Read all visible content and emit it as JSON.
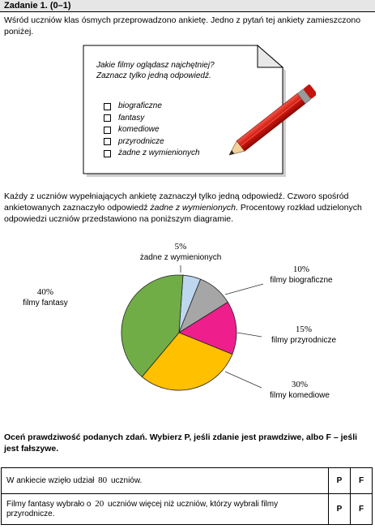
{
  "task": {
    "title": "Zadanie 1. (0–1)"
  },
  "intro": "Wśród uczniów klas ósmych przeprowadzono ankietę. Jedno z pytań tej ankiety zamieszczono poniżej.",
  "survey": {
    "question_line1": "Jakie filmy oglądasz najchętniej?",
    "question_line2": "Zaznacz tylko jedną odpowiedź.",
    "options": [
      "biograficzne",
      "fantasy",
      "komediowe",
      "przyrodnicze",
      "żadne z wymienionych"
    ],
    "icon": "pencil-icon"
  },
  "paragraph": {
    "part1": "Każdy z uczniów wypełniających ankietę zaznaczył tylko jedną odpowiedź. Czworo spośród ankietowanych zaznaczyło odpowiedź ",
    "emphasis": "żadne z wymienionych",
    "part2": ". Procentowy rozkład udzielonych odpowiedzi uczniów przedstawiono na poniższym diagramie."
  },
  "chart_data": {
    "type": "pie",
    "title": "",
    "slices": [
      {
        "name": "żadne z wymienionych",
        "value": 5,
        "pct_label": "5%",
        "color": "#bdd7ee"
      },
      {
        "name": "filmy biograficzne",
        "value": 10,
        "pct_label": "10%",
        "color": "#a6a6a6"
      },
      {
        "name": "filmy przyrodnicze",
        "value": 15,
        "pct_label": "15%",
        "color": "#ee1f8c"
      },
      {
        "name": "filmy komediowe",
        "value": 30,
        "pct_label": "30%",
        "color": "#ffc000"
      },
      {
        "name": "filmy fantasy",
        "value": 40,
        "pct_label": "40%",
        "color": "#70ad47"
      }
    ]
  },
  "instruction": "Oceń prawdziwość podanych zdań. Wybierz P, jeśli zdanie jest prawdziwe, albo F – jeśli jest fałszywe.",
  "statements": [
    {
      "before": "W ankiecie wzięło udział",
      "number": "80",
      "after": "uczniów.",
      "p": "P",
      "f": "F"
    },
    {
      "before": "Filmy fantasy wybrało o",
      "number": "20",
      "after": "uczniów więcej niż uczniów, którzy wybrali filmy przyrodnicze.",
      "p": "P",
      "f": "F"
    }
  ]
}
